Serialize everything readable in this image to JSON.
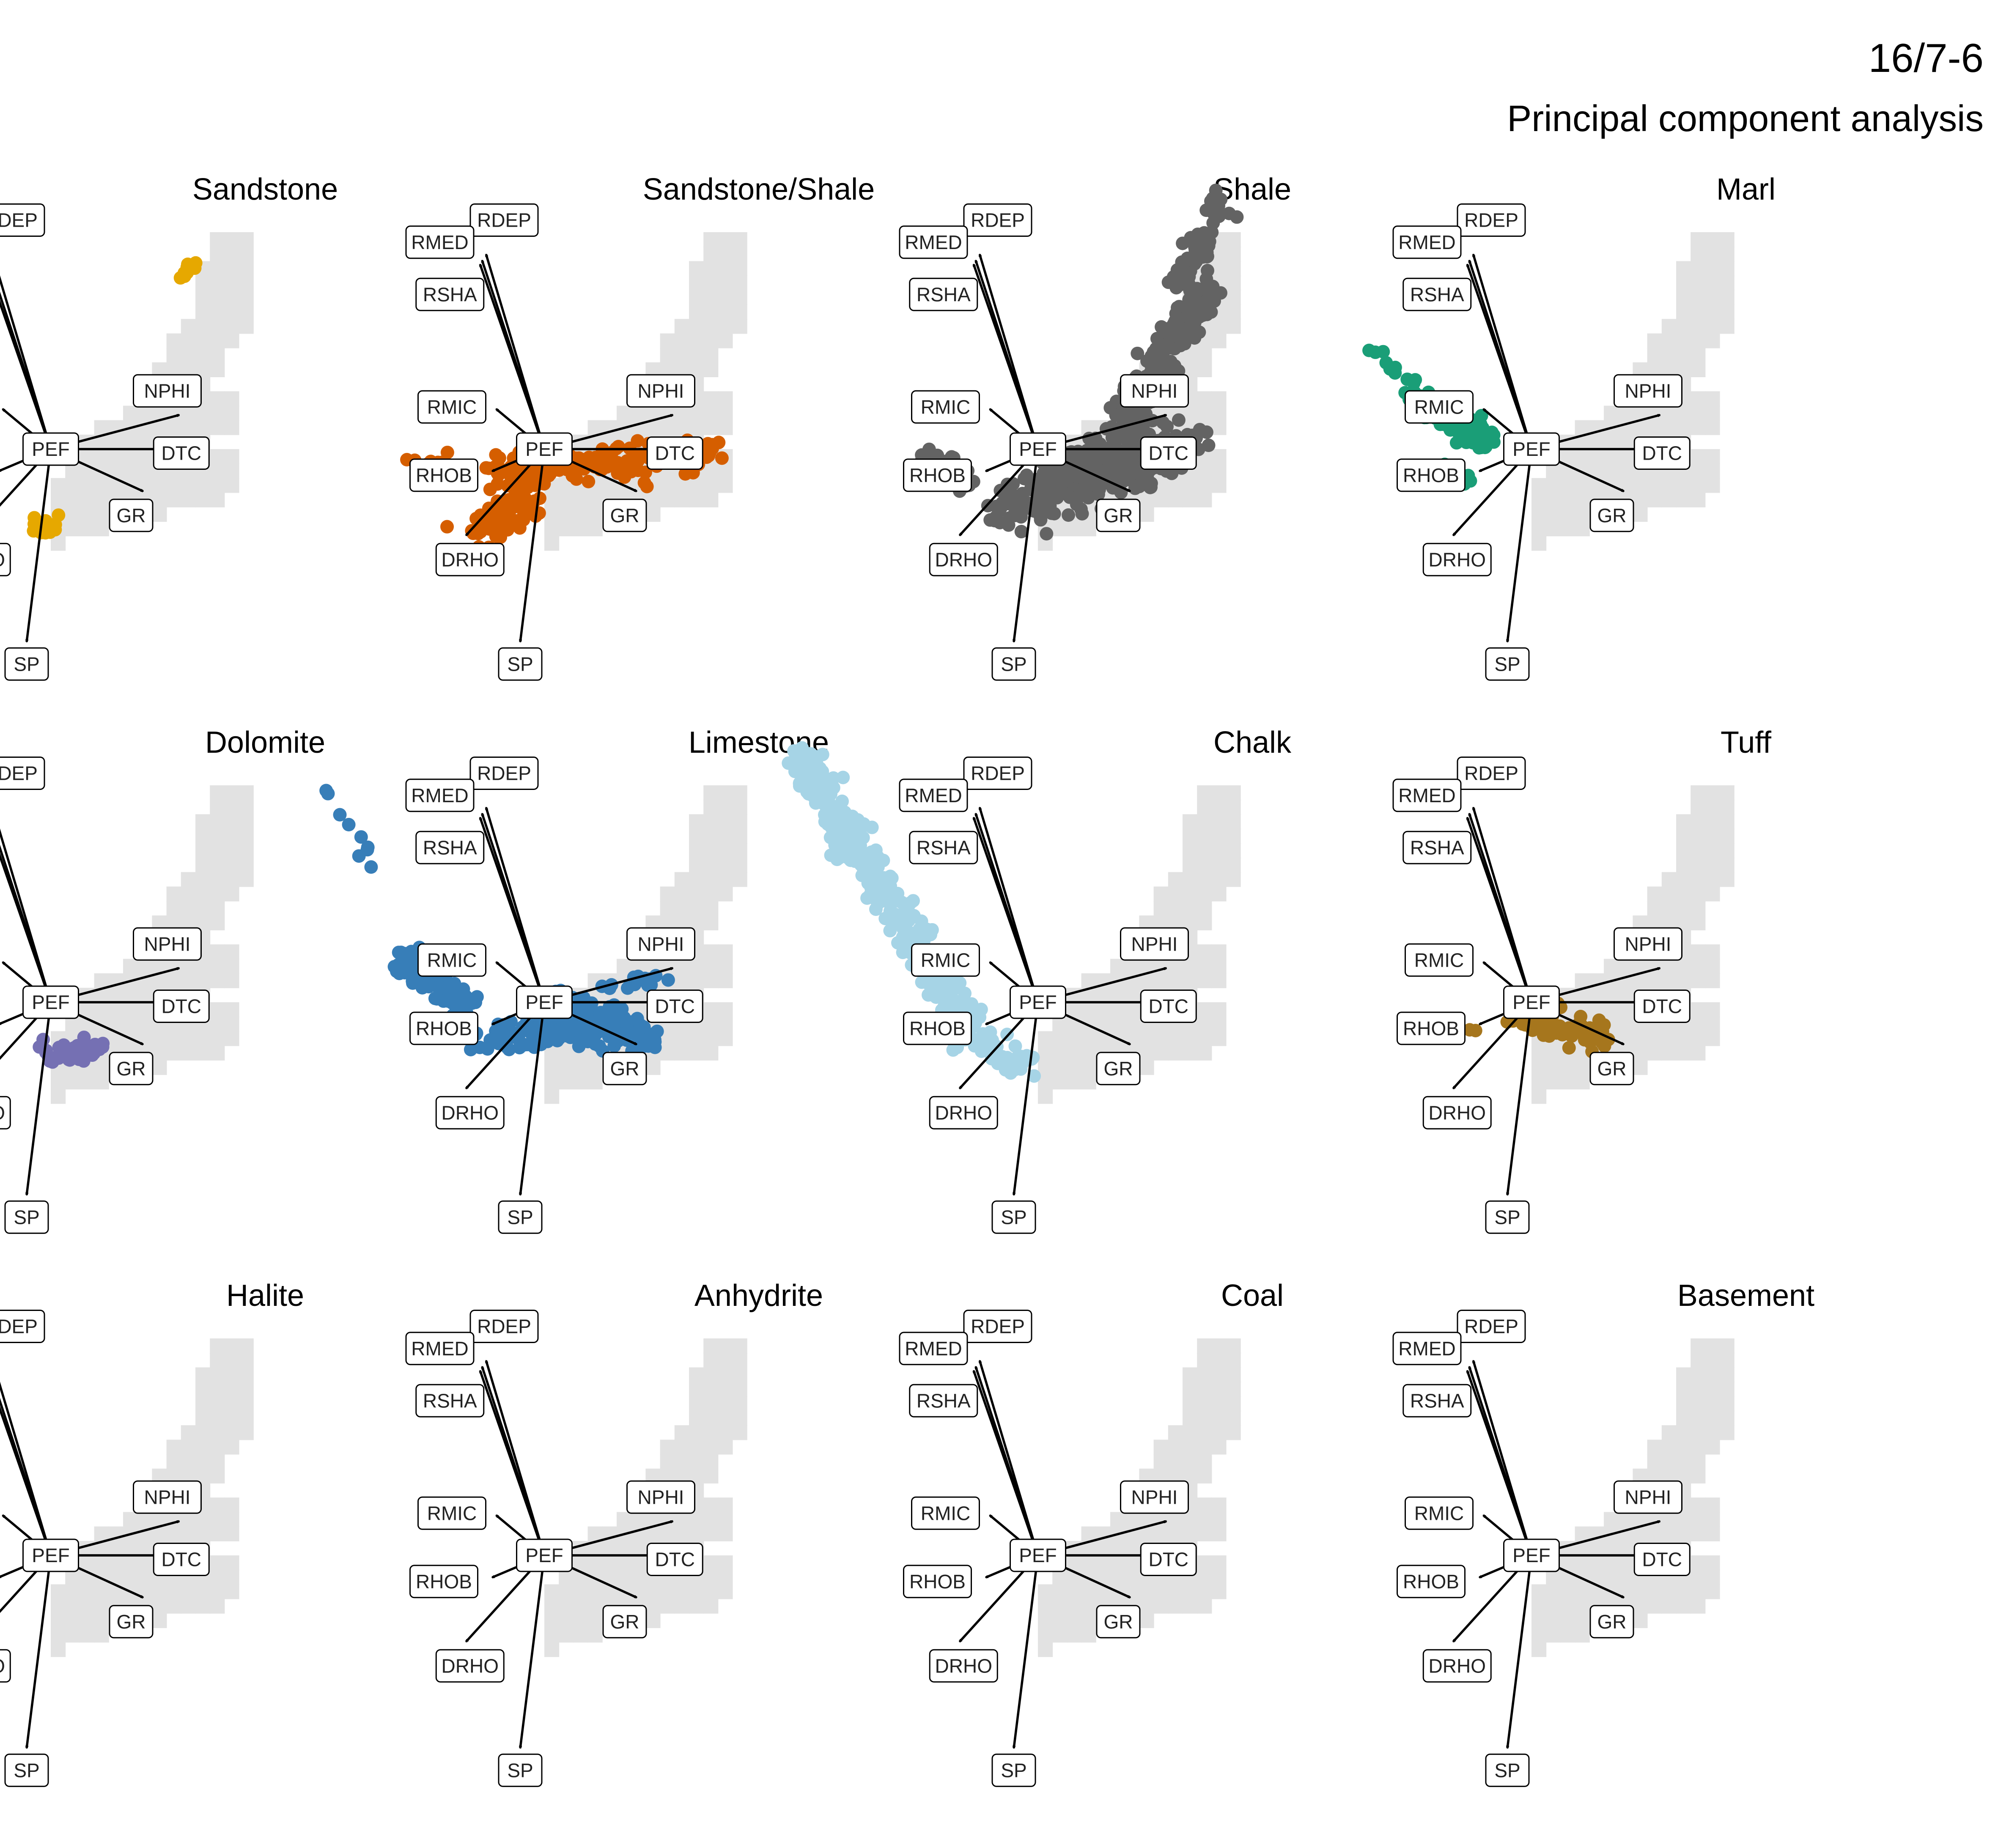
{
  "figure": {
    "title": "16/7-6",
    "subtitle": "Principal component analysis"
  },
  "chart_data": {
    "type": "scatter",
    "grid": false,
    "background_color": "#e2e2e2",
    "panels": [
      {
        "name": "Sandstone",
        "color": "#e6a800",
        "clusters": [
          {
            "x": [
              -0.4,
              0.1
            ],
            "y": [
              -2.0,
              -1.9
            ],
            "spread": 0.15,
            "n": 30
          },
          {
            "x": [
              3.2,
              3.6
            ],
            "y": [
              4.2,
              4.6
            ],
            "spread": 0.1,
            "n": 10
          }
        ]
      },
      {
        "name": "Sandstone/Shale",
        "color": "#d55e00",
        "clusters": [
          {
            "x": [
              -3.2,
              -2.6
            ],
            "y": [
              -0.6,
              -0.4
            ],
            "spread": 0.2,
            "n": 20
          },
          {
            "x": [
              -1.4,
              2.8
            ],
            "y": [
              -0.5,
              -0.3
            ],
            "spread": 0.4,
            "n": 120
          },
          {
            "x": [
              -1.6,
              -0.3
            ],
            "y": [
              -2.0,
              -1.2
            ],
            "spread": 0.4,
            "n": 80
          },
          {
            "x": [
              3.2,
              4.2
            ],
            "y": [
              -0.2,
              0.0
            ],
            "spread": 0.3,
            "n": 40
          }
        ]
      },
      {
        "name": "Shale",
        "color": "#636363",
        "clusters": [
          {
            "x": [
              -3.0,
              -1.6
            ],
            "y": [
              -0.3,
              -0.8
            ],
            "spread": 0.3,
            "n": 60
          },
          {
            "x": [
              -1.0,
              3.4
            ],
            "y": [
              -1.5,
              -0.2
            ],
            "spread": 0.5,
            "n": 250
          },
          {
            "x": [
              0.5,
              4.0
            ],
            "y": [
              -0.5,
              0.5
            ],
            "spread": 0.4,
            "n": 120
          },
          {
            "x": [
              2.0,
              4.2
            ],
            "y": [
              0.5,
              4.0
            ],
            "spread": 0.35,
            "n": 200
          },
          {
            "x": [
              3.5,
              4.6
            ],
            "y": [
              4.0,
              6.2
            ],
            "spread": 0.25,
            "n": 70
          }
        ]
      },
      {
        "name": "Marl",
        "color": "#1a9e77",
        "clusters": [
          {
            "x": [
              -4.3,
              -2.8
            ],
            "y": [
              2.6,
              1.6
            ],
            "spread": 0.12,
            "n": 10
          },
          {
            "x": [
              -2.8,
              -1.0
            ],
            "y": [
              1.2,
              0.2
            ],
            "spread": 0.3,
            "n": 150
          },
          {
            "x": [
              -2.0,
              -1.5
            ],
            "y": [
              -0.6,
              -0.8
            ],
            "spread": 0.2,
            "n": 15
          }
        ]
      },
      {
        "name": "Dolomite",
        "color": "#7570b3",
        "clusters": [
          {
            "x": [
              -0.2,
              1.2
            ],
            "y": [
              -1.3,
              -1.1
            ],
            "spread": 0.2,
            "n": 50
          }
        ]
      },
      {
        "name": "Limestone",
        "color": "#377eb8",
        "clusters": [
          {
            "x": [
              -5.5,
              -4.0
            ],
            "y": [
              5.4,
              3.0
            ],
            "spread": 0.12,
            "n": 9
          },
          {
            "x": [
              -3.8,
              -1.8
            ],
            "y": [
              1.2,
              -0.2
            ],
            "spread": 0.3,
            "n": 90
          },
          {
            "x": [
              -1.8,
              1.5
            ],
            "y": [
              -0.9,
              -0.6
            ],
            "spread": 0.3,
            "n": 90
          },
          {
            "x": [
              0.5,
              2.6
            ],
            "y": [
              -0.2,
              -0.9
            ],
            "spread": 0.4,
            "n": 150
          },
          {
            "x": [
              1.5,
              3.0
            ],
            "y": [
              0.4,
              0.7
            ],
            "spread": 0.2,
            "n": 15
          }
        ]
      },
      {
        "name": "Chalk",
        "color": "#a6d4e6",
        "clusters": [
          {
            "x": [
              -6.0,
              -1.8
            ],
            "y": [
              6.2,
              -0.5
            ],
            "spread": 0.35,
            "n": 400
          },
          {
            "x": [
              -2.0,
              -0.3
            ],
            "y": [
              -0.8,
              -1.5
            ],
            "spread": 0.3,
            "n": 50
          }
        ]
      },
      {
        "name": "Tuff",
        "color": "#a6761d",
        "clusters": [
          {
            "x": [
              -3.2,
              -1.2
            ],
            "y": [
              -0.5,
              -0.6
            ],
            "spread": 0.1,
            "n": 4
          },
          {
            "x": [
              -0.2,
              1.8
            ],
            "y": [
              -0.3,
              -0.9
            ],
            "spread": 0.3,
            "n": 70
          }
        ]
      },
      {
        "name": "Halite",
        "color": "#666666",
        "clusters": []
      },
      {
        "name": "Anhydrite",
        "color": "#666666",
        "clusters": []
      },
      {
        "name": "Coal",
        "color": "#666666",
        "clusters": []
      },
      {
        "name": "Basement",
        "color": "#666666",
        "clusters": []
      }
    ],
    "loadings": [
      {
        "name": "RDEP",
        "x": -1.45,
        "y": 4.85
      },
      {
        "name": "RMED",
        "x": -1.6,
        "y": 4.6
      },
      {
        "name": "RSHA",
        "x": -1.55,
        "y": 4.7
      },
      {
        "name": "RMIC",
        "x": -1.2,
        "y": 1.0
      },
      {
        "name": "RHOB",
        "x": -1.3,
        "y": -0.55
      },
      {
        "name": "DRHO",
        "x": -1.95,
        "y": -2.15
      },
      {
        "name": "SP",
        "x": -0.6,
        "y": -4.8
      },
      {
        "name": "NPHI",
        "x": 3.2,
        "y": 0.85
      },
      {
        "name": "DTC",
        "x": 2.95,
        "y": 0.0
      },
      {
        "name": "GR",
        "x": 2.3,
        "y": -1.05
      },
      {
        "name": "PEF",
        "x": 0.0,
        "y": 0.0
      }
    ]
  }
}
